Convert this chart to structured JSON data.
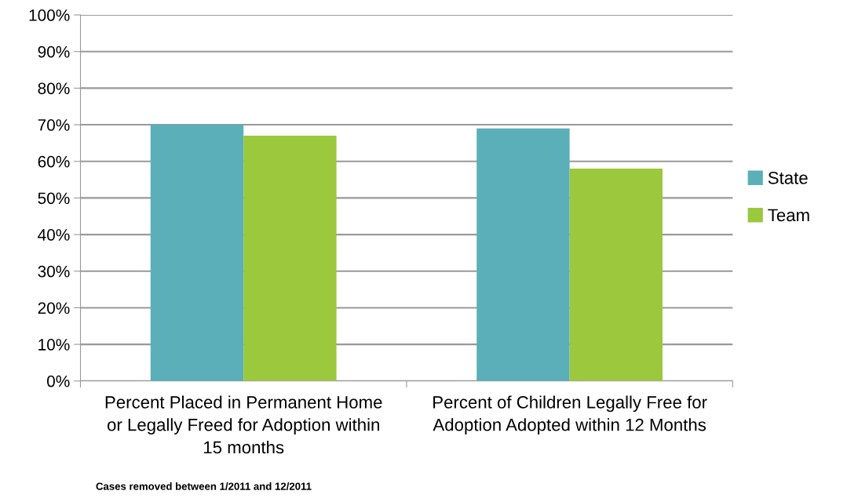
{
  "chart_data": {
    "type": "bar",
    "categories": [
      "Percent Placed in Permanent Home or Legally Freed for Adoption within 15 months",
      "Percent of Children Legally Free for Adoption Adopted within 12 Months"
    ],
    "series": [
      {
        "name": "State",
        "color": "#5aafb9",
        "values": [
          70,
          69
        ]
      },
      {
        "name": "Team",
        "color": "#9bc83d",
        "values": [
          67,
          58
        ]
      }
    ],
    "ylim": [
      0,
      100
    ],
    "yticks": [
      {
        "value": 0,
        "label": "0%"
      },
      {
        "value": 10,
        "label": "10%"
      },
      {
        "value": 20,
        "label": "20%"
      },
      {
        "value": 30,
        "label": "30%"
      },
      {
        "value": 40,
        "label": "40%"
      },
      {
        "value": 50,
        "label": "50%"
      },
      {
        "value": 60,
        "label": "60%"
      },
      {
        "value": 70,
        "label": "70%"
      },
      {
        "value": 80,
        "label": "80%"
      },
      {
        "value": 90,
        "label": "90%"
      },
      {
        "value": 100,
        "label": "100%"
      }
    ],
    "grid": "y",
    "legend": "right",
    "annotations": [
      "Cases removed between 1/2011 and 12/2011"
    ]
  }
}
